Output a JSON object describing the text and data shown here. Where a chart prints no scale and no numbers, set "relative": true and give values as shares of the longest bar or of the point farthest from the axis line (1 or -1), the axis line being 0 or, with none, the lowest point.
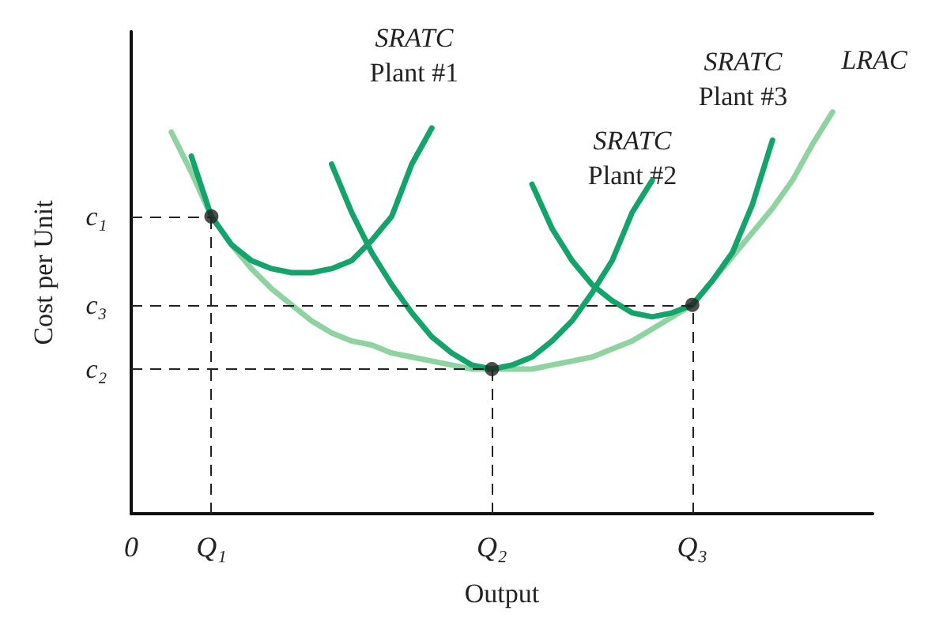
{
  "chart_data": {
    "type": "line",
    "relative": true,
    "xlabel": "Output",
    "ylabel": "Cost per Unit",
    "categories": [
      "0",
      null,
      null,
      null,
      "Q₁",
      null,
      null,
      null,
      null,
      null,
      null,
      null,
      null,
      null,
      null,
      null,
      null,
      null,
      "Q₂",
      null,
      null,
      null,
      null,
      null,
      null,
      null,
      null,
      null,
      "Q₃",
      null,
      null,
      null,
      null,
      null,
      null,
      null,
      null,
      null
    ],
    "marker": "none",
    "line_style": "solid",
    "series": [
      {
        "color": "#8fd3a0",
        "values": [
          null,
          null,
          0.95,
          0.85,
          0.74,
          0.67,
          0.61,
          0.56,
          0.52,
          0.48,
          0.45,
          0.43,
          0.42,
          0.4,
          0.39,
          0.38,
          0.37,
          0.36,
          0.36,
          0.36,
          0.36,
          0.37,
          0.38,
          0.39,
          0.41,
          0.43,
          0.46,
          0.49,
          0.52,
          0.58,
          0.64,
          0.7,
          0.76,
          0.83,
          0.92,
          1,
          null,
          null
        ]
      },
      {
        "color": "#14a36b",
        "values": [
          null,
          null,
          null,
          0.89,
          0.74,
          0.67,
          0.63,
          0.61,
          0.6,
          0.6,
          0.61,
          0.63,
          0.68,
          0.74,
          0.87,
          0.96,
          null,
          null,
          null,
          null,
          null,
          null,
          null,
          null,
          null,
          null,
          null,
          null,
          null,
          null,
          null,
          null,
          null,
          null,
          null,
          null,
          null,
          null
        ]
      },
      {
        "color": "#14a36b",
        "values": [
          null,
          null,
          null,
          null,
          null,
          null,
          null,
          null,
          null,
          null,
          0.87,
          0.75,
          0.65,
          0.57,
          0.5,
          0.44,
          0.4,
          0.37,
          0.36,
          0.37,
          0.39,
          0.43,
          0.48,
          0.55,
          0.63,
          0.75,
          0.83,
          null,
          null,
          null,
          null,
          null,
          null,
          null,
          null,
          null,
          null,
          null
        ]
      },
      {
        "color": "#14a36b",
        "values": [
          null,
          null,
          null,
          null,
          null,
          null,
          null,
          null,
          null,
          null,
          null,
          null,
          null,
          null,
          null,
          null,
          null,
          null,
          null,
          null,
          0.82,
          0.71,
          0.63,
          0.57,
          0.53,
          0.5,
          0.49,
          0.5,
          0.52,
          0.58,
          0.65,
          0.77,
          0.93,
          null,
          null,
          null,
          null,
          null
        ]
      },
      {
        "type": "scatter",
        "marker": "circle",
        "line_style": "dashed",
        "color": "#222222",
        "x": [
          "Q₁",
          "Q₂",
          "Q₃"
        ],
        "values": [
          0.74,
          0.36,
          0.52
        ]
      }
    ],
    "annotations": [
      "SRATC\nPlant #1",
      "SRATC\nPlant #2",
      "SRATC\nPlant #3",
      "LRAC",
      "c₁",
      "c₂",
      "c₃"
    ]
  }
}
